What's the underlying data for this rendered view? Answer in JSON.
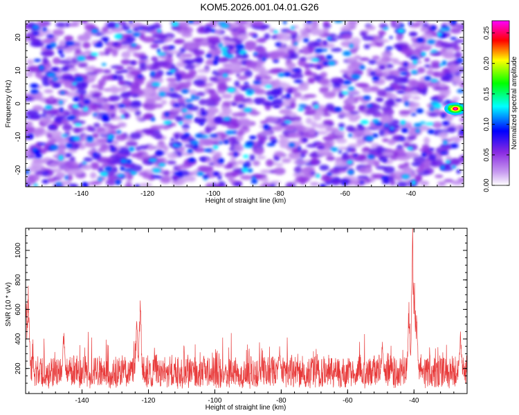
{
  "title": "KOM5.2026.001.04.01.G26",
  "chart_data": [
    {
      "type": "heatmap",
      "xlabel": "Height of straight line (km)",
      "ylabel": "Frequency (Hz)",
      "xlim": [
        -157,
        -24
      ],
      "ylim": [
        -25,
        25
      ],
      "xticks": [
        -140,
        -120,
        -100,
        -80,
        -60,
        -40
      ],
      "yticks": [
        -20,
        -10,
        0,
        10,
        20
      ],
      "colorbar": {
        "label": "Normalized spectral amplitude",
        "range": [
          0,
          0.27
        ],
        "ticks": [
          "0.00",
          "0.05",
          "0.10",
          "0.15",
          "0.20",
          "0.25"
        ],
        "colors": [
          "#ffffff",
          "#8a2be2",
          "#0000ff",
          "#00ffff",
          "#00ff00",
          "#ffff00",
          "#ff0000",
          "#ff00ff"
        ]
      },
      "background_amplitude": [
        0.0,
        0.08
      ],
      "peak": {
        "x": -26.5,
        "y": -1.5,
        "value": 0.27
      }
    },
    {
      "type": "line",
      "xlabel": "Height of straight line (km)",
      "ylabel": "SNR (10 * v/v)",
      "xlim": [
        -157,
        -24
      ],
      "ylim": [
        30,
        1150
      ],
      "xticks": [
        -140,
        -120,
        -100,
        -80,
        -60,
        -40
      ],
      "yticks": [
        200,
        400,
        600,
        800,
        1000
      ],
      "color": "#e83a3a",
      "baseline": [
        100,
        300
      ],
      "peaks": [
        {
          "x": -156.2,
          "y": 760
        },
        {
          "x": -156.8,
          "y": 640
        },
        {
          "x": -145.5,
          "y": 440
        },
        {
          "x": -122.5,
          "y": 660
        },
        {
          "x": -123.5,
          "y": 520
        },
        {
          "x": -80.5,
          "y": 350
        },
        {
          "x": -49.5,
          "y": 380
        },
        {
          "x": -41.5,
          "y": 650
        },
        {
          "x": -40.4,
          "y": 1150
        },
        {
          "x": -39.8,
          "y": 780
        },
        {
          "x": -39.2,
          "y": 560
        },
        {
          "x": -26.0,
          "y": 450
        }
      ]
    }
  ]
}
